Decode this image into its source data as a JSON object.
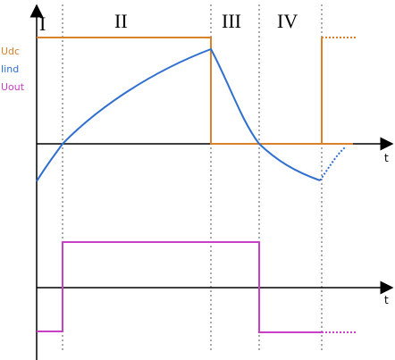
{
  "phases": [
    "I",
    "II",
    "III",
    "IV"
  ],
  "signals": [
    "Udc",
    "Iind",
    "Uout"
  ],
  "axes": {
    "top_time": "t",
    "bottom_time": "t"
  }
}
